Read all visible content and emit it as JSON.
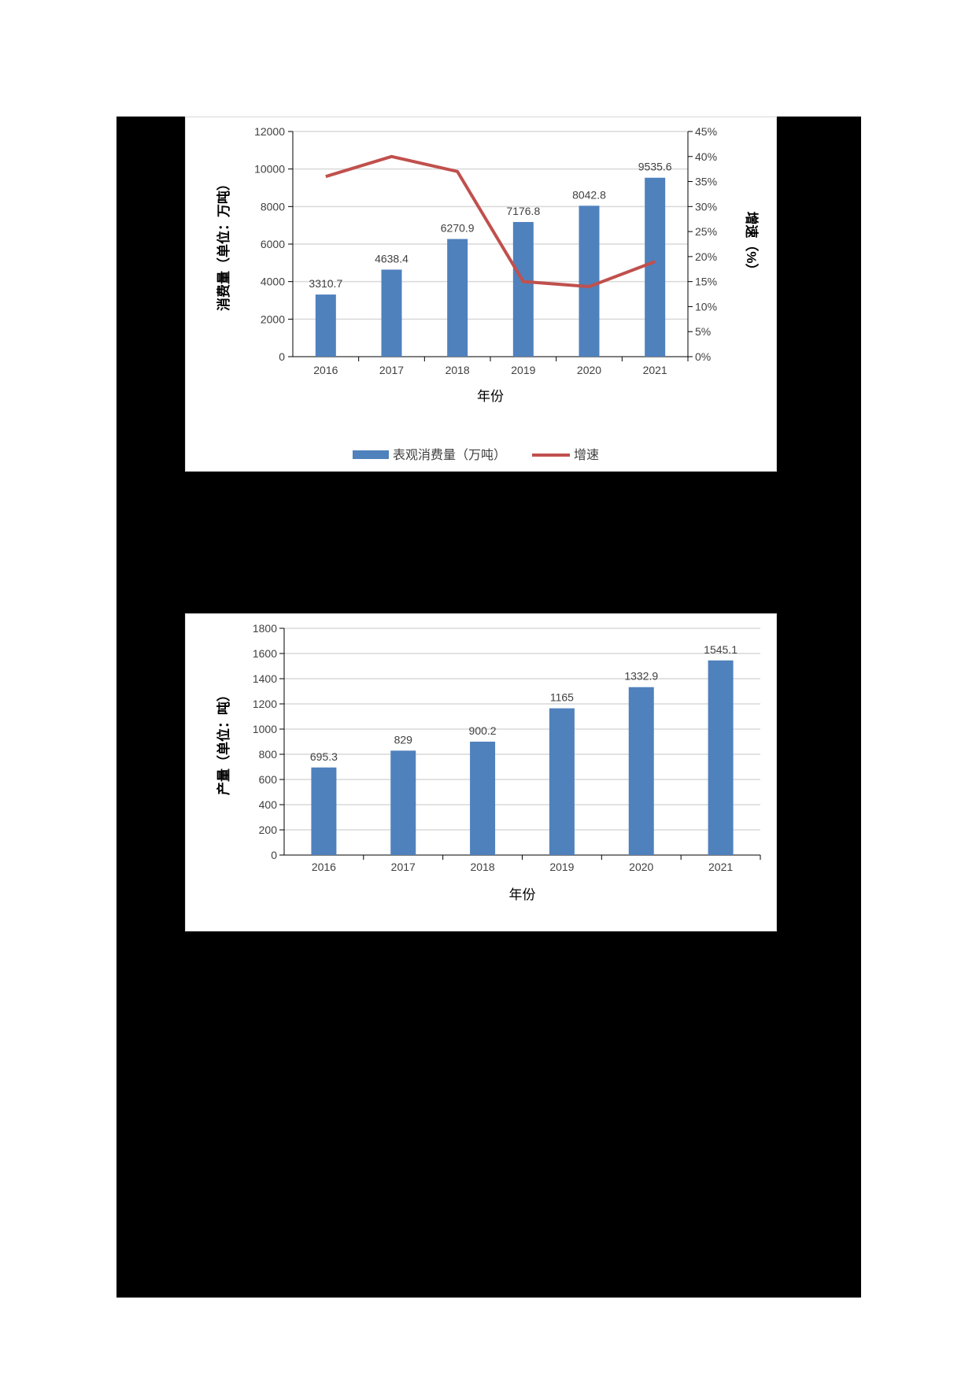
{
  "colors": {
    "bar": "#4f81bd",
    "line": "#c0504d",
    "grid": "#d9d9d9",
    "axis": "#000000",
    "text": "#404040",
    "page_bg": "#000000"
  },
  "chart_data": [
    {
      "type": "bar+line",
      "title": "",
      "categories": [
        "2016",
        "2017",
        "2018",
        "2019",
        "2020",
        "2021"
      ],
      "xlabel": "年份",
      "ylabel": "消费量（单位：万吨）",
      "y2label": "增速（%）",
      "ylim": [
        0,
        12000
      ],
      "y2lim": [
        0,
        45
      ],
      "yticks": [
        "0",
        "2000",
        "4000",
        "6000",
        "8000",
        "10000",
        "12000"
      ],
      "y2ticks": [
        "0%",
        "5%",
        "10%",
        "15%",
        "20%",
        "25%",
        "30%",
        "35%",
        "40%",
        "45%"
      ],
      "grid": true,
      "legend_position": "bottom",
      "series": [
        {
          "name": "表观消费量（万吨）",
          "type": "bar",
          "axis": "left",
          "values": [
            3310.7,
            4638.4,
            6270.9,
            7176.8,
            8042.8,
            9535.6
          ],
          "labels": [
            "3310.7",
            "4638.4",
            "6270.9",
            "7176.8",
            "8042.8",
            "9535.6"
          ]
        },
        {
          "name": "增速",
          "type": "line",
          "axis": "right",
          "values": [
            36,
            40,
            37,
            15,
            14,
            19
          ]
        }
      ]
    },
    {
      "type": "bar",
      "title": "",
      "categories": [
        "2016",
        "2017",
        "2018",
        "2019",
        "2020",
        "2021"
      ],
      "values": [
        695.3,
        829,
        900.2,
        1165,
        1332.9,
        1545.1
      ],
      "labels": [
        "695.3",
        "829",
        "900.2",
        "1165",
        "1332.9",
        "1545.1"
      ],
      "xlabel": "年份",
      "ylabel": "产量（单位：吨）",
      "ylim": [
        0,
        1800
      ],
      "yticks": [
        "0",
        "200",
        "400",
        "600",
        "800",
        "1000",
        "1200",
        "1400",
        "1600",
        "1800"
      ],
      "grid": true
    }
  ]
}
